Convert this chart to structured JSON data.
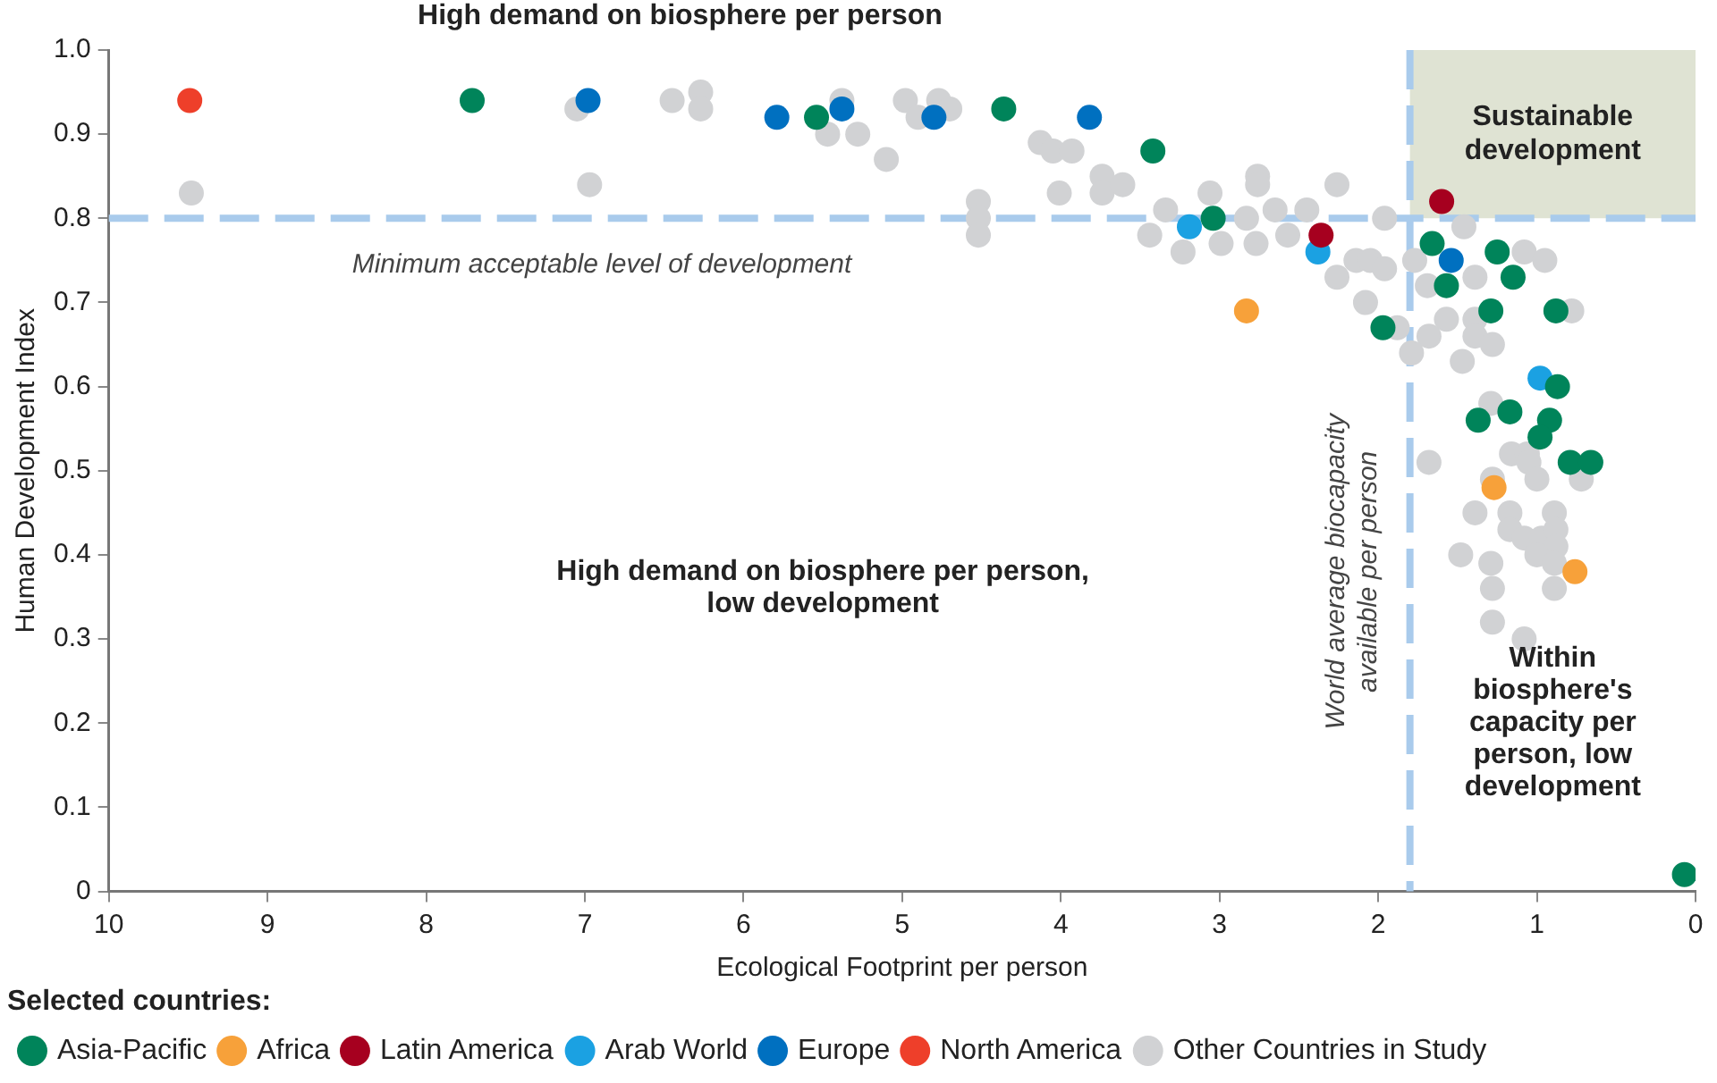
{
  "chart_data": {
    "type": "scatter",
    "xlabel": "Ecological Footprint per person",
    "ylabel": "Human Development Index",
    "legend_title": "Selected countries:",
    "legend": "bottom left",
    "marker": "circle",
    "grid": false,
    "xlim": [
      10,
      0
    ],
    "xticks": [
      10,
      9,
      8,
      7,
      6,
      5,
      4,
      3,
      2,
      1,
      0
    ],
    "ylim": [
      0,
      1
    ],
    "yticks": [
      0,
      0.1,
      0.2,
      0.3,
      0.4,
      0.5,
      0.6,
      0.7,
      0.8,
      0.9,
      {
        "value": 1,
        "label": "1.0"
      }
    ],
    "ref_lines": [
      {
        "axis": "y",
        "value": 0.8,
        "label": "Minimum acceptable level of development",
        "color": "#a9cbec",
        "line_style": "dashed"
      },
      {
        "axis": "x",
        "value": 1.8,
        "label": "World average biocapacity available per person",
        "color": "#a9cbec",
        "line_style": "dashed"
      }
    ],
    "bands": [
      {
        "axis": "x",
        "from": 1.8,
        "to": 0,
        "label": "Sustainable development",
        "color": "#dfe3d3"
      }
    ],
    "annotations": [
      "High demand on biosphere per person",
      "High demand on biosphere per person, low development",
      "Within biosphere's capacity per person, low development"
    ],
    "series": [
      {
        "name": "Asia-Pacific",
        "color": "#00845a",
        "x": [
          7.71,
          5.54,
          4.36,
          3.42,
          3.04,
          1.97,
          1.66,
          1.25,
          1.15,
          1.57,
          1.29,
          0.88,
          0.87,
          0.92,
          1.17,
          1.37,
          0.98,
          0.79,
          0.66,
          0.07
        ],
        "values": [
          0.94,
          0.92,
          0.93,
          0.88,
          0.8,
          0.67,
          0.77,
          0.76,
          0.73,
          0.72,
          0.69,
          0.69,
          0.6,
          0.56,
          0.57,
          0.56,
          0.54,
          0.51,
          0.51,
          0.02
        ]
      },
      {
        "name": "Africa",
        "color": "#f7a13a",
        "x": [
          2.83,
          1.27,
          0.76
        ],
        "values": [
          0.69,
          0.48,
          0.38
        ]
      },
      {
        "name": "Latin America",
        "color": "#a6001f",
        "x": [
          1.6,
          2.36
        ],
        "values": [
          0.82,
          0.78
        ]
      },
      {
        "name": "Arab World",
        "color": "#1ba1e2",
        "x": [
          3.19,
          2.38,
          0.98
        ],
        "values": [
          0.79,
          0.76,
          0.61
        ]
      },
      {
        "name": "Europe",
        "color": "#0070c0",
        "x": [
          6.98,
          5.79,
          5.38,
          4.8,
          3.82,
          1.54
        ],
        "values": [
          0.94,
          0.92,
          0.93,
          0.92,
          0.92,
          0.75
        ]
      },
      {
        "name": "North America",
        "color": "#ee3f2a",
        "x": [
          9.49
        ],
        "values": [
          0.94
        ]
      },
      {
        "name": "Other Countries in Study",
        "color": "#d1d2d4",
        "x": [
          9.48,
          6.97,
          7.05,
          6.45,
          6.27,
          6.27,
          5.47,
          5.38,
          5.28,
          5.1,
          4.98,
          4.9,
          4.77,
          4.7,
          4.52,
          4.52,
          4.52,
          4.13,
          4.05,
          3.93,
          4.01,
          3.74,
          3.74,
          3.61,
          3.34,
          3.44,
          3.23,
          3.06,
          2.99,
          2.76,
          2.76,
          2.26,
          2.83,
          2.65,
          2.45,
          2.77,
          2.57,
          1.96,
          1.46,
          2.26,
          2.14,
          2.05,
          1.96,
          1.77,
          1.69,
          2.08,
          1.39,
          1.08,
          0.95,
          0.78,
          1.88,
          1.57,
          1.39,
          1.68,
          1.39,
          1.28,
          1.79,
          1.47,
          1.29,
          1.68,
          1.16,
          1.06,
          1.05,
          1.28,
          1.0,
          0.72,
          1.39,
          1.17,
          0.89,
          1.17,
          1.08,
          0.97,
          0.88,
          0.88,
          1.0,
          0.89,
          1.48,
          1.29,
          0.89,
          1.28,
          1.28,
          1.08
        ],
        "values": [
          0.83,
          0.84,
          0.93,
          0.94,
          0.95,
          0.93,
          0.9,
          0.94,
          0.9,
          0.87,
          0.94,
          0.92,
          0.94,
          0.93,
          0.82,
          0.8,
          0.78,
          0.89,
          0.88,
          0.88,
          0.83,
          0.85,
          0.83,
          0.84,
          0.81,
          0.78,
          0.76,
          0.83,
          0.77,
          0.85,
          0.84,
          0.84,
          0.8,
          0.81,
          0.81,
          0.77,
          0.78,
          0.8,
          0.79,
          0.73,
          0.75,
          0.75,
          0.74,
          0.75,
          0.72,
          0.7,
          0.73,
          0.76,
          0.75,
          0.69,
          0.67,
          0.68,
          0.68,
          0.66,
          0.66,
          0.65,
          0.64,
          0.63,
          0.58,
          0.51,
          0.52,
          0.52,
          0.51,
          0.49,
          0.49,
          0.49,
          0.45,
          0.45,
          0.45,
          0.43,
          0.42,
          0.42,
          0.43,
          0.41,
          0.4,
          0.39,
          0.4,
          0.39,
          0.36,
          0.36,
          0.32,
          0.3
        ]
      }
    ]
  }
}
